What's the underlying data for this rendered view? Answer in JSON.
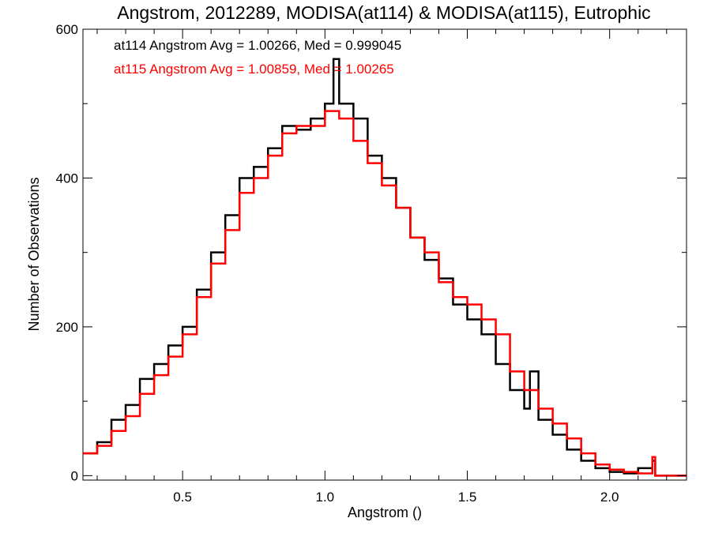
{
  "chart_data": {
    "type": "line",
    "title": "Angstrom, 2012289, MODISA(at114) & MODISA(at115), Eutrophic",
    "xlabel": "Angstrom ()",
    "ylabel": "Number of Observations",
    "xlim": [
      0.15,
      2.27
    ],
    "ylim": [
      -6,
      600
    ],
    "xticks": [
      0.5,
      1.0,
      1.5,
      2.0
    ],
    "xtick_labels": [
      "0.5",
      "1.0",
      "1.5",
      "2.0"
    ],
    "yticks": [
      0,
      200,
      400,
      600
    ],
    "ytick_labels": [
      "0",
      "200",
      "400",
      "600"
    ],
    "legend": [
      "at114 Angstrom Avg = 1.00266, Med = 0.999045",
      "at115 Angstrom Avg = 1.00859, Med = 1.00265"
    ],
    "legend_position": "top-left",
    "series": [
      {
        "color": "#000000",
        "step": "histogram",
        "x": [
          0.15,
          0.2,
          0.25,
          0.3,
          0.35,
          0.4,
          0.45,
          0.5,
          0.55,
          0.6,
          0.65,
          0.7,
          0.75,
          0.8,
          0.85,
          0.9,
          0.95,
          1.0,
          1.03,
          1.05,
          1.1,
          1.15,
          1.2,
          1.25,
          1.3,
          1.35,
          1.4,
          1.45,
          1.5,
          1.55,
          1.6,
          1.65,
          1.7,
          1.72,
          1.75,
          1.8,
          1.85,
          1.9,
          1.95,
          2.0,
          2.05,
          2.1,
          2.15,
          2.16,
          2.17
        ],
        "values": [
          30,
          45,
          75,
          95,
          130,
          150,
          175,
          200,
          250,
          300,
          350,
          400,
          415,
          440,
          470,
          465,
          480,
          500,
          560,
          500,
          480,
          430,
          400,
          360,
          320,
          290,
          265,
          230,
          210,
          190,
          150,
          115,
          90,
          140,
          75,
          55,
          35,
          20,
          10,
          5,
          3,
          10,
          20,
          0,
          0
        ]
      },
      {
        "color": "#ff0000",
        "step": "histogram",
        "x": [
          0.15,
          0.2,
          0.25,
          0.3,
          0.35,
          0.4,
          0.45,
          0.5,
          0.55,
          0.6,
          0.65,
          0.7,
          0.75,
          0.8,
          0.85,
          0.9,
          0.95,
          1.0,
          1.05,
          1.1,
          1.15,
          1.2,
          1.25,
          1.3,
          1.35,
          1.4,
          1.45,
          1.5,
          1.55,
          1.6,
          1.65,
          1.7,
          1.75,
          1.8,
          1.85,
          1.9,
          1.95,
          2.0,
          2.05,
          2.1,
          2.15,
          2.16,
          2.17,
          2.27
        ],
        "values": [
          30,
          40,
          60,
          80,
          110,
          135,
          160,
          190,
          240,
          285,
          330,
          380,
          400,
          430,
          460,
          470,
          470,
          490,
          480,
          450,
          420,
          390,
          360,
          320,
          300,
          260,
          240,
          230,
          210,
          190,
          140,
          115,
          90,
          70,
          50,
          30,
          15,
          8,
          5,
          3,
          25,
          0,
          0,
          0
        ]
      }
    ]
  }
}
